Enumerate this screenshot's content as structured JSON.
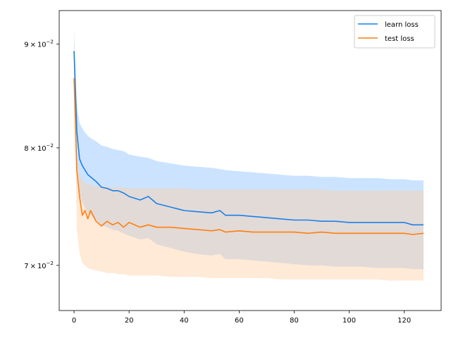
{
  "chart_data": {
    "type": "line",
    "title": "",
    "xlabel": "",
    "ylabel": "",
    "y_scale": "log",
    "xlim": [
      -5.4,
      133.4
    ],
    "ylim": [
      0.0665,
      0.0935
    ],
    "grid": false,
    "legend_position": "top-right",
    "x_ticks": [
      0,
      20,
      40,
      60,
      80,
      100,
      120
    ],
    "x_tick_labels": [
      "0",
      "20",
      "40",
      "60",
      "80",
      "100",
      "120"
    ],
    "y_ticks": [
      0.07,
      0.08,
      0.09
    ],
    "y_tick_labels": [
      {
        "mantissa": "7",
        "times": "×",
        "base": "10",
        "exponent": "−2"
      },
      {
        "mantissa": "8",
        "times": "×",
        "base": "10",
        "exponent": "−2"
      },
      {
        "mantissa": "9",
        "times": "×",
        "base": "10",
        "exponent": "−2"
      }
    ],
    "x": [
      0,
      1,
      2,
      3,
      4,
      5,
      6,
      8,
      10,
      12,
      14,
      16,
      18,
      20,
      24,
      27,
      30,
      35,
      40,
      45,
      50,
      53,
      55,
      60,
      65,
      70,
      75,
      80,
      85,
      90,
      95,
      100,
      105,
      110,
      115,
      120,
      123,
      127
    ],
    "series": [
      {
        "name": "learn loss",
        "color": "#1f77b4",
        "line_color": "#1a80e6",
        "band_color": "#8cc2ff",
        "mean": [
          0.0893,
          0.0815,
          0.079,
          0.0784,
          0.078,
          0.0776,
          0.0774,
          0.077,
          0.0765,
          0.0764,
          0.0762,
          0.0762,
          0.076,
          0.0757,
          0.0754,
          0.0757,
          0.0751,
          0.0748,
          0.0745,
          0.0744,
          0.0743,
          0.0745,
          0.0741,
          0.0741,
          0.074,
          0.0739,
          0.0738,
          0.0737,
          0.0737,
          0.0736,
          0.0736,
          0.0735,
          0.0735,
          0.0735,
          0.0735,
          0.0735,
          0.0733,
          0.0733
        ],
        "upper": [
          0.0915,
          0.084,
          0.0823,
          0.0818,
          0.0814,
          0.0811,
          0.0809,
          0.0806,
          0.0802,
          0.0801,
          0.0799,
          0.0798,
          0.0797,
          0.0794,
          0.0792,
          0.0791,
          0.0788,
          0.0786,
          0.0784,
          0.0783,
          0.0782,
          0.0781,
          0.078,
          0.0779,
          0.0778,
          0.0777,
          0.0776,
          0.0775,
          0.0775,
          0.0774,
          0.0774,
          0.0773,
          0.0773,
          0.0773,
          0.0772,
          0.0772,
          0.0771,
          0.0771
        ],
        "lower": [
          0.087,
          0.079,
          0.076,
          0.0752,
          0.0747,
          0.0743,
          0.0741,
          0.0737,
          0.0733,
          0.0731,
          0.0729,
          0.0728,
          0.0726,
          0.0724,
          0.0721,
          0.0722,
          0.0717,
          0.0714,
          0.0711,
          0.0709,
          0.0708,
          0.0709,
          0.0705,
          0.0705,
          0.0704,
          0.0703,
          0.0702,
          0.0701,
          0.07,
          0.07,
          0.0699,
          0.0699,
          0.0699,
          0.0698,
          0.0698,
          0.0698,
          0.0697,
          0.0697
        ]
      },
      {
        "name": "test loss",
        "color": "#ff7f0e",
        "line_color": "#ff7f0e",
        "band_color": "#ffcfa6",
        "mean": [
          0.0866,
          0.078,
          0.0757,
          0.0741,
          0.0745,
          0.0738,
          0.0745,
          0.0736,
          0.0732,
          0.0736,
          0.0733,
          0.0735,
          0.0731,
          0.0735,
          0.0731,
          0.0733,
          0.0731,
          0.0731,
          0.073,
          0.0729,
          0.0728,
          0.0729,
          0.0727,
          0.0728,
          0.0727,
          0.0727,
          0.0727,
          0.0727,
          0.0726,
          0.0727,
          0.0726,
          0.0726,
          0.0726,
          0.0726,
          0.0726,
          0.0726,
          0.0725,
          0.0726
        ],
        "upper": [
          0.0867,
          0.079,
          0.0775,
          0.0771,
          0.0769,
          0.0768,
          0.0767,
          0.0766,
          0.0766,
          0.0765,
          0.0765,
          0.0765,
          0.0765,
          0.0764,
          0.0764,
          0.0764,
          0.0764,
          0.0764,
          0.0764,
          0.0763,
          0.0763,
          0.0763,
          0.0763,
          0.0763,
          0.0763,
          0.0763,
          0.0763,
          0.0763,
          0.0763,
          0.0763,
          0.0762,
          0.0762,
          0.0762,
          0.0762,
          0.0762,
          0.0762,
          0.0762,
          0.0762
        ],
        "lower": [
          0.0862,
          0.073,
          0.071,
          0.0702,
          0.07,
          0.0698,
          0.0697,
          0.0696,
          0.0695,
          0.0694,
          0.0694,
          0.0693,
          0.0693,
          0.0692,
          0.0692,
          0.0692,
          0.0692,
          0.0691,
          0.0691,
          0.0691,
          0.069,
          0.069,
          0.069,
          0.069,
          0.069,
          0.069,
          0.0689,
          0.0689,
          0.0689,
          0.0689,
          0.0689,
          0.0689,
          0.0689,
          0.0689,
          0.0688,
          0.0688,
          0.0688,
          0.0688
        ]
      }
    ]
  }
}
